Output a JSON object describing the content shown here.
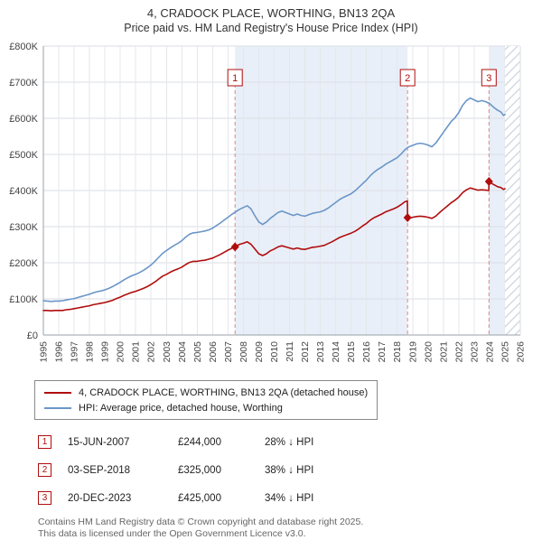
{
  "header": {
    "title": "4, CRADOCK PLACE, WORTHING, BN13 2QA",
    "subtitle": "Price paid vs. HM Land Registry's House Price Index (HPI)"
  },
  "sales": [
    {
      "num": "1",
      "date": "15-JUN-2007",
      "price": "£244,000",
      "hpi": "28% ↓ HPI",
      "year": 2007.46,
      "value": 244
    },
    {
      "num": "2",
      "date": "03-SEP-2018",
      "price": "£325,000",
      "hpi": "38% ↓ HPI",
      "year": 2018.67,
      "value": 325
    },
    {
      "num": "3",
      "date": "20-DEC-2023",
      "price": "£425,000",
      "hpi": "34% ↓ HPI",
      "year": 2023.96,
      "value": 425
    }
  ],
  "footer": {
    "line1": "Contains HM Land Registry data © Crown copyright and database right 2025.",
    "line2": "This data is licensed under the Open Government Licence v3.0."
  },
  "chart_data": {
    "type": "line",
    "title": "4, CRADOCK PLACE, WORTHING, BN13 2QA",
    "subtitle": "Price paid vs. HM Land Registry's House Price Index (HPI)",
    "x_range": [
      1995,
      2026
    ],
    "y_range": [
      0,
      800
    ],
    "y_ticks": [
      "£0",
      "£100K",
      "£200K",
      "£300K",
      "£400K",
      "£500K",
      "£600K",
      "£700K",
      "£800K"
    ],
    "x_ticks": [
      1995,
      1996,
      1997,
      1998,
      1999,
      2000,
      2001,
      2002,
      2003,
      2004,
      2005,
      2006,
      2007,
      2008,
      2009,
      2010,
      2011,
      2012,
      2013,
      2014,
      2015,
      2016,
      2017,
      2018,
      2019,
      2020,
      2021,
      2022,
      2023,
      2024,
      2025,
      2026
    ],
    "hatch_start": 2025.0,
    "colors": {
      "property": "#b00d0d",
      "hpi": "#6a96c8",
      "band": "#e9eff8",
      "marker_line": "#dd8888",
      "grid": "#dadee3"
    },
    "legend_position": "bottom",
    "grid": true,
    "series": [
      {
        "id": "property",
        "name": "4, CRADOCK PLACE, WORTHING, BN13 2QA (detached house)",
        "color": "#b00d0d",
        "points": [
          [
            1995.0,
            68
          ],
          [
            1995.25,
            68
          ],
          [
            1995.5,
            67
          ],
          [
            1995.75,
            68
          ],
          [
            1996.0,
            68
          ],
          [
            1996.25,
            68
          ],
          [
            1996.5,
            70
          ],
          [
            1996.75,
            71
          ],
          [
            1997.0,
            73
          ],
          [
            1997.25,
            75
          ],
          [
            1997.5,
            77
          ],
          [
            1997.75,
            79
          ],
          [
            1998.0,
            81
          ],
          [
            1998.25,
            84
          ],
          [
            1998.5,
            86
          ],
          [
            1998.75,
            88
          ],
          [
            1999.0,
            90
          ],
          [
            1999.25,
            93
          ],
          [
            1999.5,
            96
          ],
          [
            1999.75,
            101
          ],
          [
            2000.0,
            105
          ],
          [
            2000.25,
            110
          ],
          [
            2000.5,
            114
          ],
          [
            2000.75,
            118
          ],
          [
            2001.0,
            121
          ],
          [
            2001.25,
            125
          ],
          [
            2001.5,
            129
          ],
          [
            2001.75,
            134
          ],
          [
            2002.0,
            140
          ],
          [
            2002.25,
            147
          ],
          [
            2002.5,
            155
          ],
          [
            2002.75,
            163
          ],
          [
            2003.0,
            168
          ],
          [
            2003.25,
            174
          ],
          [
            2003.5,
            179
          ],
          [
            2003.75,
            183
          ],
          [
            2004.0,
            188
          ],
          [
            2004.25,
            195
          ],
          [
            2004.5,
            201
          ],
          [
            2004.75,
            204
          ],
          [
            2005.0,
            204
          ],
          [
            2005.25,
            206
          ],
          [
            2005.5,
            207
          ],
          [
            2005.75,
            210
          ],
          [
            2006.0,
            213
          ],
          [
            2006.25,
            218
          ],
          [
            2006.5,
            223
          ],
          [
            2006.75,
            229
          ],
          [
            2007.0,
            235
          ],
          [
            2007.25,
            240
          ],
          [
            2007.46,
            244
          ],
          [
            2007.5,
            245
          ],
          [
            2007.75,
            251
          ],
          [
            2008.0,
            254
          ],
          [
            2008.25,
            258
          ],
          [
            2008.5,
            251
          ],
          [
            2008.75,
            238
          ],
          [
            2009.0,
            225
          ],
          [
            2009.25,
            220
          ],
          [
            2009.5,
            225
          ],
          [
            2009.75,
            233
          ],
          [
            2010.0,
            238
          ],
          [
            2010.25,
            244
          ],
          [
            2010.5,
            247
          ],
          [
            2010.75,
            244
          ],
          [
            2011.0,
            241
          ],
          [
            2011.25,
            238
          ],
          [
            2011.5,
            241
          ],
          [
            2011.75,
            238
          ],
          [
            2012.0,
            237
          ],
          [
            2012.25,
            240
          ],
          [
            2012.5,
            243
          ],
          [
            2012.75,
            244
          ],
          [
            2013.0,
            246
          ],
          [
            2013.25,
            248
          ],
          [
            2013.5,
            253
          ],
          [
            2013.75,
            258
          ],
          [
            2014.0,
            264
          ],
          [
            2014.25,
            270
          ],
          [
            2014.5,
            274
          ],
          [
            2014.75,
            278
          ],
          [
            2015.0,
            282
          ],
          [
            2015.25,
            287
          ],
          [
            2015.5,
            294
          ],
          [
            2015.75,
            302
          ],
          [
            2016.0,
            309
          ],
          [
            2016.25,
            318
          ],
          [
            2016.5,
            325
          ],
          [
            2016.75,
            330
          ],
          [
            2017.0,
            335
          ],
          [
            2017.25,
            341
          ],
          [
            2017.5,
            345
          ],
          [
            2017.75,
            349
          ],
          [
            2018.0,
            354
          ],
          [
            2018.25,
            361
          ],
          [
            2018.5,
            369
          ],
          [
            2018.66,
            371
          ],
          [
            2018.67,
            325
          ],
          [
            2018.75,
            323
          ],
          [
            2019.0,
            326
          ],
          [
            2019.25,
            328
          ],
          [
            2019.5,
            329
          ],
          [
            2019.75,
            328
          ],
          [
            2020.0,
            326
          ],
          [
            2020.25,
            323
          ],
          [
            2020.5,
            329
          ],
          [
            2020.75,
            339
          ],
          [
            2021.0,
            348
          ],
          [
            2021.25,
            357
          ],
          [
            2021.5,
            366
          ],
          [
            2021.75,
            373
          ],
          [
            2022.0,
            382
          ],
          [
            2022.25,
            394
          ],
          [
            2022.5,
            402
          ],
          [
            2022.75,
            407
          ],
          [
            2023.0,
            404
          ],
          [
            2023.25,
            401
          ],
          [
            2023.5,
            402
          ],
          [
            2023.75,
            401
          ],
          [
            2023.95,
            400
          ],
          [
            2023.96,
            425
          ],
          [
            2024.0,
            423
          ],
          [
            2024.25,
            417
          ],
          [
            2024.5,
            411
          ],
          [
            2024.75,
            408
          ],
          [
            2024.9,
            403
          ],
          [
            2025.0,
            405
          ]
        ]
      },
      {
        "id": "hpi",
        "name": "HPI: Average price, detached house, Worthing",
        "color": "#6a96c8",
        "points": [
          [
            1995.0,
            95
          ],
          [
            1995.25,
            94
          ],
          [
            1995.5,
            93
          ],
          [
            1995.75,
            94
          ],
          [
            1996.0,
            94
          ],
          [
            1996.25,
            95
          ],
          [
            1996.5,
            97
          ],
          [
            1996.75,
            99
          ],
          [
            1997.0,
            101
          ],
          [
            1997.25,
            104
          ],
          [
            1997.5,
            107
          ],
          [
            1997.75,
            110
          ],
          [
            1998.0,
            113
          ],
          [
            1998.25,
            117
          ],
          [
            1998.5,
            120
          ],
          [
            1998.75,
            122
          ],
          [
            1999.0,
            125
          ],
          [
            1999.25,
            129
          ],
          [
            1999.5,
            134
          ],
          [
            1999.75,
            140
          ],
          [
            2000.0,
            146
          ],
          [
            2000.25,
            153
          ],
          [
            2000.5,
            159
          ],
          [
            2000.75,
            164
          ],
          [
            2001.0,
            168
          ],
          [
            2001.25,
            173
          ],
          [
            2001.5,
            179
          ],
          [
            2001.75,
            186
          ],
          [
            2002.0,
            194
          ],
          [
            2002.25,
            204
          ],
          [
            2002.5,
            215
          ],
          [
            2002.75,
            226
          ],
          [
            2003.0,
            234
          ],
          [
            2003.25,
            241
          ],
          [
            2003.5,
            248
          ],
          [
            2003.75,
            254
          ],
          [
            2004.0,
            261
          ],
          [
            2004.25,
            271
          ],
          [
            2004.5,
            279
          ],
          [
            2004.75,
            283
          ],
          [
            2005.0,
            284
          ],
          [
            2005.25,
            286
          ],
          [
            2005.5,
            288
          ],
          [
            2005.75,
            291
          ],
          [
            2006.0,
            296
          ],
          [
            2006.25,
            303
          ],
          [
            2006.5,
            310
          ],
          [
            2006.75,
            318
          ],
          [
            2007.0,
            326
          ],
          [
            2007.25,
            334
          ],
          [
            2007.5,
            341
          ],
          [
            2007.75,
            348
          ],
          [
            2008.0,
            353
          ],
          [
            2008.25,
            358
          ],
          [
            2008.5,
            349
          ],
          [
            2008.75,
            330
          ],
          [
            2009.0,
            313
          ],
          [
            2009.25,
            306
          ],
          [
            2009.5,
            313
          ],
          [
            2009.75,
            323
          ],
          [
            2010.0,
            331
          ],
          [
            2010.25,
            339
          ],
          [
            2010.5,
            343
          ],
          [
            2010.75,
            339
          ],
          [
            2011.0,
            335
          ],
          [
            2011.25,
            331
          ],
          [
            2011.5,
            335
          ],
          [
            2011.75,
            331
          ],
          [
            2012.0,
            329
          ],
          [
            2012.25,
            333
          ],
          [
            2012.5,
            337
          ],
          [
            2012.75,
            339
          ],
          [
            2013.0,
            341
          ],
          [
            2013.25,
            345
          ],
          [
            2013.5,
            351
          ],
          [
            2013.75,
            359
          ],
          [
            2014.0,
            367
          ],
          [
            2014.25,
            375
          ],
          [
            2014.5,
            381
          ],
          [
            2014.75,
            386
          ],
          [
            2015.0,
            391
          ],
          [
            2015.25,
            399
          ],
          [
            2015.5,
            409
          ],
          [
            2015.75,
            419
          ],
          [
            2016.0,
            429
          ],
          [
            2016.25,
            441
          ],
          [
            2016.5,
            451
          ],
          [
            2016.75,
            459
          ],
          [
            2017.0,
            465
          ],
          [
            2017.25,
            473
          ],
          [
            2017.5,
            479
          ],
          [
            2017.75,
            485
          ],
          [
            2018.0,
            491
          ],
          [
            2018.25,
            501
          ],
          [
            2018.5,
            513
          ],
          [
            2018.75,
            521
          ],
          [
            2019.0,
            525
          ],
          [
            2019.25,
            529
          ],
          [
            2019.5,
            531
          ],
          [
            2019.75,
            529
          ],
          [
            2020.0,
            526
          ],
          [
            2020.25,
            521
          ],
          [
            2020.5,
            531
          ],
          [
            2020.75,
            546
          ],
          [
            2021.0,
            561
          ],
          [
            2021.25,
            576
          ],
          [
            2021.5,
            591
          ],
          [
            2021.75,
            601
          ],
          [
            2022.0,
            616
          ],
          [
            2022.25,
            636
          ],
          [
            2022.5,
            649
          ],
          [
            2022.75,
            656
          ],
          [
            2023.0,
            651
          ],
          [
            2023.25,
            646
          ],
          [
            2023.5,
            649
          ],
          [
            2023.75,
            646
          ],
          [
            2024.0,
            641
          ],
          [
            2024.25,
            631
          ],
          [
            2024.5,
            623
          ],
          [
            2024.75,
            617
          ],
          [
            2024.9,
            608
          ],
          [
            2025.0,
            611
          ]
        ]
      }
    ]
  }
}
